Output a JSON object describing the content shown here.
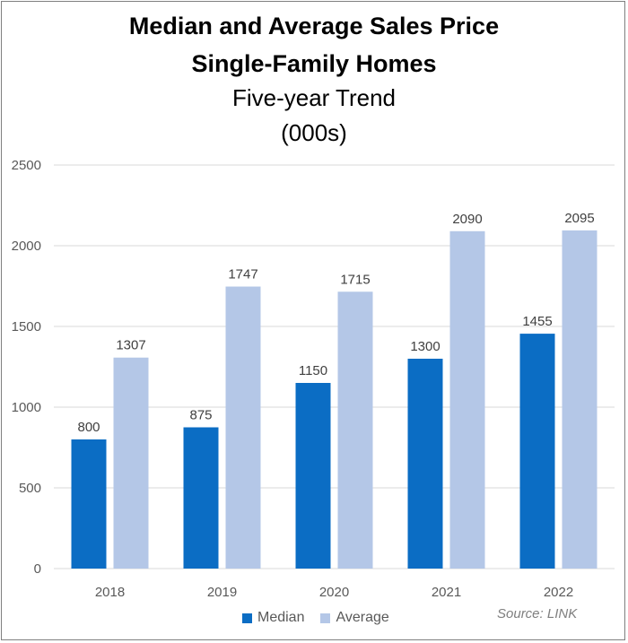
{
  "chart_data": {
    "type": "bar",
    "title_lines": [
      "Median and Average Sales Price",
      "Single-Family Homes",
      "Five-year Trend",
      "(000s)"
    ],
    "categories": [
      "2018",
      "2019",
      "2020",
      "2021",
      "2022"
    ],
    "series": [
      {
        "name": "Median",
        "values": [
          800,
          875,
          1150,
          1300,
          1455
        ],
        "color": "#0b6dc4"
      },
      {
        "name": "Average",
        "values": [
          1307,
          1747,
          1715,
          2090,
          2095
        ],
        "color": "#b4c7e7"
      }
    ],
    "yticks": [
      0,
      500,
      1000,
      1500,
      2000,
      2500
    ],
    "ylim": [
      0,
      2500
    ],
    "grid": true,
    "legend_position": "bottom",
    "source": "Source: LINK"
  }
}
